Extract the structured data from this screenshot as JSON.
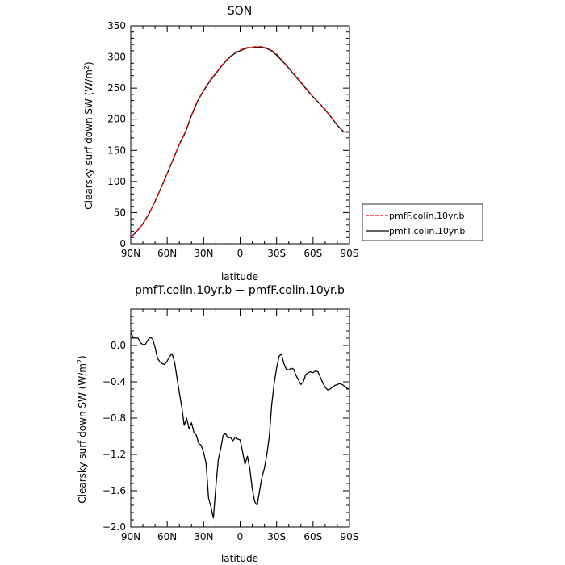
{
  "chart_data": [
    {
      "type": "line",
      "title": "SON",
      "xlabel": "latitude",
      "ylabel_main": "Clearsky surf down SW (W/m",
      "ylabel_sup": "2",
      "ylabel_close": ")",
      "xlim": [
        90,
        -90
      ],
      "ylim": [
        0,
        350
      ],
      "x_ticks": [
        90,
        60,
        30,
        0,
        -30,
        -60,
        -90
      ],
      "x_tick_labels": [
        "90N",
        "60N",
        "30N",
        "0",
        "30S",
        "60S",
        "90S"
      ],
      "y_ticks": [
        0,
        50,
        100,
        150,
        200,
        250,
        300,
        350
      ],
      "y_tick_labels": [
        "0",
        "50",
        "100",
        "150",
        "200",
        "250",
        "300",
        "350"
      ],
      "legend": {
        "placement": "right",
        "entries": [
          {
            "label": "pmfF.colin.10yr.b",
            "color": "#ff0000",
            "dashed": true
          },
          {
            "label": "pmfT.colin.10yr.b",
            "color": "#000000",
            "dashed": false
          }
        ]
      },
      "series": [
        {
          "name": "pmfF.colin.10yr.b",
          "color": "#ff0000",
          "dashed": true,
          "x": [
            90,
            88,
            85,
            80,
            75,
            70,
            65,
            60,
            55,
            50,
            45,
            40,
            35,
            30,
            25,
            20,
            15,
            10,
            5,
            0,
            -5,
            -10,
            -15,
            -20,
            -25,
            -30,
            -35,
            -40,
            -45,
            -50,
            -55,
            -60,
            -65,
            -70,
            -75,
            -80,
            -85,
            -88,
            -90
          ],
          "y": [
            12,
            14,
            20,
            32,
            48,
            68,
            90,
            113,
            136,
            160,
            180,
            207,
            230,
            247,
            262,
            274,
            287,
            298,
            306,
            311,
            315,
            316,
            317,
            316,
            312,
            305,
            294,
            283,
            271,
            260,
            248,
            236,
            226,
            216,
            203,
            191,
            180,
            179,
            179
          ]
        },
        {
          "name": "pmfT.colin.10yr.b",
          "color": "#000000",
          "dashed": false,
          "x": [
            90,
            88,
            85,
            80,
            75,
            70,
            65,
            60,
            55,
            50,
            45,
            40,
            35,
            30,
            25,
            20,
            15,
            10,
            5,
            0,
            -5,
            -10,
            -15,
            -20,
            -25,
            -30,
            -35,
            -40,
            -45,
            -50,
            -55,
            -60,
            -65,
            -70,
            -75,
            -80,
            -85,
            -88,
            -90
          ],
          "y": [
            12,
            14,
            20,
            32,
            48,
            68,
            90,
            113,
            136,
            160,
            179,
            206,
            229,
            246,
            261,
            273,
            286,
            297,
            305,
            310,
            314,
            315,
            316,
            315,
            311,
            303,
            293,
            282,
            270,
            259,
            247,
            236,
            226,
            215,
            203,
            190,
            180,
            179,
            179
          ]
        }
      ]
    },
    {
      "type": "line",
      "title": "pmfT.colin.10yr.b − pmfF.colin.10yr.b",
      "xlabel": "latitude",
      "ylabel_main": "Clearsky surf down SW (W/m",
      "ylabel_sup": "2",
      "ylabel_close": ")",
      "xlim": [
        90,
        -90
      ],
      "ylim": [
        -2.0,
        0.4
      ],
      "x_ticks": [
        90,
        60,
        30,
        0,
        -30,
        -60,
        -90
      ],
      "x_tick_labels": [
        "90N",
        "60N",
        "30N",
        "0",
        "30S",
        "60S",
        "90S"
      ],
      "y_ticks": [
        -2.0,
        -1.6,
        -1.2,
        -0.8,
        -0.4,
        0.0
      ],
      "y_tick_labels": [
        "−2.0",
        "−1.6",
        "−1.2",
        "−0.8",
        "−0.4",
        "0.0"
      ],
      "series": [
        {
          "color": "#000000",
          "x": [
            90,
            88,
            86,
            84,
            82,
            80,
            78,
            76,
            74,
            72,
            70,
            68,
            66,
            64,
            62,
            60,
            58,
            56,
            54,
            52,
            50,
            48,
            46,
            44,
            42,
            40,
            38,
            36,
            34,
            32,
            30,
            28,
            26,
            24,
            22,
            20,
            18,
            16,
            14,
            12,
            10,
            8,
            6,
            4,
            2,
            0,
            -2,
            -4,
            -6,
            -8,
            -10,
            -12,
            -14,
            -16,
            -18,
            -20,
            -22,
            -24,
            -26,
            -28,
            -30,
            -32,
            -34,
            -36,
            -38,
            -40,
            -42,
            -44,
            -46,
            -48,
            -50,
            -52,
            -54,
            -56,
            -58,
            -60,
            -62,
            -64,
            -66,
            -68,
            -70,
            -72,
            -74,
            -76,
            -78,
            -80,
            -82,
            -84,
            -86,
            -88,
            -90
          ],
          "y": [
            0.14,
            0.09,
            0.08,
            0.08,
            0.03,
            0.01,
            0.01,
            0.06,
            0.09,
            0.07,
            -0.02,
            -0.14,
            -0.18,
            -0.2,
            -0.21,
            -0.17,
            -0.12,
            -0.09,
            -0.18,
            -0.35,
            -0.52,
            -0.68,
            -0.88,
            -0.8,
            -0.92,
            -0.85,
            -0.96,
            -0.99,
            -1.08,
            -1.1,
            -1.18,
            -1.3,
            -1.68,
            -1.78,
            -1.9,
            -1.56,
            -1.26,
            -1.14,
            -0.99,
            -0.97,
            -1.02,
            -1.01,
            -1.05,
            -1.01,
            -1.03,
            -1.04,
            -1.17,
            -1.31,
            -1.22,
            -1.36,
            -1.58,
            -1.72,
            -1.76,
            -1.6,
            -1.45,
            -1.35,
            -1.2,
            -1.0,
            -0.65,
            -0.42,
            -0.25,
            -0.12,
            -0.09,
            -0.2,
            -0.26,
            -0.27,
            -0.25,
            -0.26,
            -0.33,
            -0.38,
            -0.43,
            -0.4,
            -0.32,
            -0.3,
            -0.29,
            -0.3,
            -0.28,
            -0.29,
            -0.35,
            -0.41,
            -0.46,
            -0.49,
            -0.48,
            -0.46,
            -0.44,
            -0.43,
            -0.42,
            -0.43,
            -0.45,
            -0.47,
            -0.49
          ]
        }
      ]
    }
  ]
}
